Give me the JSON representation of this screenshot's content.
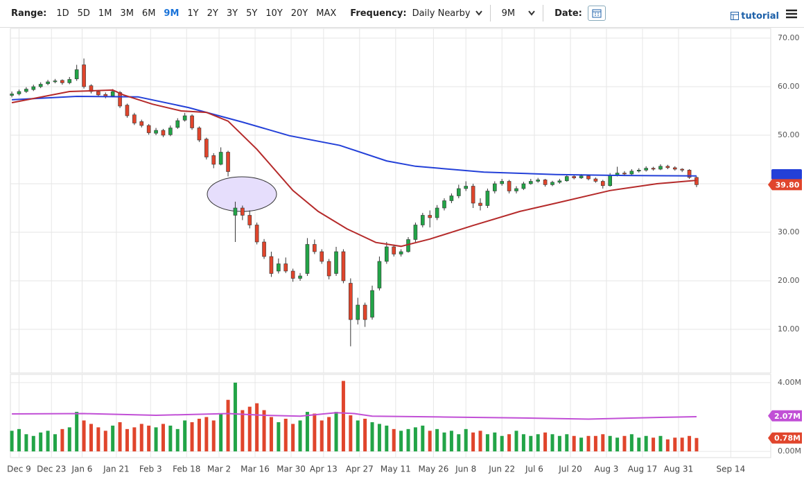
{
  "toolbar": {
    "range_label": "Range:",
    "ranges": [
      "1D",
      "5D",
      "1M",
      "3M",
      "6M",
      "9M",
      "1Y",
      "2Y",
      "3Y",
      "5Y",
      "10Y",
      "20Y",
      "MAX"
    ],
    "frequency_label": "Frequency:",
    "frequency": "Daily Nearby",
    "period": "9M",
    "date_label": "Date:",
    "tutorial": "tutorial"
  },
  "chart_data": {
    "type": "candlestick",
    "x": [
      0,
      2,
      4,
      6,
      8,
      10,
      12,
      14,
      16,
      18,
      20,
      22,
      24,
      26,
      28,
      30,
      32,
      34,
      36,
      38,
      40,
      42,
      44,
      46,
      48,
      50,
      52,
      54,
      56,
      58,
      60,
      62,
      64,
      66,
      68,
      70,
      72,
      74,
      76,
      78,
      80,
      82,
      84,
      86,
      88,
      90,
      92,
      94,
      96,
      98,
      100,
      102,
      104,
      106,
      108,
      110,
      112,
      114,
      116,
      118,
      120,
      122,
      124,
      126,
      128,
      130,
      132,
      134,
      136,
      138,
      140,
      142,
      144,
      146,
      148,
      150,
      152,
      154,
      156,
      158,
      160,
      162,
      164,
      166,
      168,
      170,
      172,
      174,
      176,
      178,
      180,
      182,
      184,
      186,
      188,
      190
    ],
    "ohlc": [
      [
        58.2,
        59,
        57.8,
        58.5
      ],
      [
        58.5,
        59.4,
        58.2,
        59
      ],
      [
        59,
        59.9,
        58.7,
        59.5
      ],
      [
        59.4,
        60.4,
        59.1,
        60
      ],
      [
        60,
        60.9,
        59.7,
        60.5
      ],
      [
        60.6,
        61.4,
        60.3,
        61
      ],
      [
        61,
        61.6,
        60.7,
        61.2
      ],
      [
        61.3,
        61.5,
        60.4,
        60.8
      ],
      [
        60.8,
        62,
        60.5,
        61.5
      ],
      [
        61.6,
        64.5,
        61.2,
        63.5
      ],
      [
        64.5,
        65.8,
        59.6,
        60
      ],
      [
        60.2,
        60.5,
        58.6,
        59
      ],
      [
        59,
        59.3,
        57.9,
        58.3
      ],
      [
        58.4,
        58.8,
        57.6,
        58
      ],
      [
        58.1,
        59.5,
        57.8,
        59
      ],
      [
        58.8,
        59.1,
        55.6,
        56
      ],
      [
        56.2,
        56.5,
        53.6,
        54
      ],
      [
        54.2,
        54.6,
        52.1,
        52.5
      ],
      [
        52.8,
        53.2,
        51.6,
        52
      ],
      [
        52,
        52.3,
        50.1,
        50.5
      ],
      [
        50.4,
        51.5,
        50,
        51
      ],
      [
        51,
        51.3,
        49.6,
        50
      ],
      [
        50.1,
        52,
        49.8,
        51.5
      ],
      [
        51.6,
        53.5,
        51.3,
        53
      ],
      [
        53.1,
        54.6,
        52.8,
        54
      ],
      [
        54,
        54.3,
        51.1,
        51.5
      ],
      [
        51.5,
        51.8,
        48.6,
        49
      ],
      [
        49.2,
        49.5,
        45,
        45.5
      ],
      [
        45.8,
        46.3,
        43.2,
        44
      ],
      [
        44,
        47.5,
        43.8,
        46.5
      ],
      [
        46.5,
        46.8,
        41.5,
        42.5
      ],
      [
        33.5,
        36.3,
        28,
        35
      ],
      [
        35,
        35.5,
        32.5,
        33.5
      ],
      [
        33.5,
        34.5,
        30.8,
        31.5
      ],
      [
        31.5,
        32,
        27.5,
        28
      ],
      [
        28,
        28.6,
        24.5,
        25
      ],
      [
        25,
        26,
        20.8,
        21.5
      ],
      [
        22,
        24.6,
        21.5,
        23.5
      ],
      [
        23.5,
        24.8,
        21.6,
        22
      ],
      [
        22,
        22.5,
        19.8,
        20.5
      ],
      [
        20.5,
        21.6,
        20,
        21
      ],
      [
        21.5,
        28.8,
        21,
        27.5
      ],
      [
        27.5,
        28.5,
        25.5,
        26
      ],
      [
        26,
        26.5,
        23.5,
        24
      ],
      [
        24,
        24.5,
        20.3,
        21
      ],
      [
        21.5,
        27,
        21,
        26
      ],
      [
        26,
        26.5,
        19.5,
        20
      ],
      [
        19.5,
        20.5,
        6.5,
        12
      ],
      [
        12,
        16.5,
        11,
        15
      ],
      [
        15,
        15.5,
        10.5,
        12
      ],
      [
        12.5,
        19,
        12,
        18
      ],
      [
        18.5,
        25,
        18,
        24
      ],
      [
        24,
        28,
        23.5,
        27
      ],
      [
        27,
        27.5,
        25,
        25.5
      ],
      [
        25.5,
        26.5,
        25,
        26
      ],
      [
        26,
        29,
        25.8,
        28.5
      ],
      [
        28.5,
        32,
        28,
        31.5
      ],
      [
        31.5,
        34,
        31,
        33.5
      ],
      [
        33.5,
        34.5,
        31,
        33
      ],
      [
        33,
        35.6,
        32.5,
        35
      ],
      [
        35,
        37,
        34.5,
        36.5
      ],
      [
        36.5,
        38,
        36,
        37.5
      ],
      [
        37.5,
        39.8,
        37,
        39
      ],
      [
        39,
        40.5,
        38.5,
        39.5
      ],
      [
        39.5,
        40,
        35,
        36
      ],
      [
        36,
        37,
        34.5,
        35.5
      ],
      [
        35.5,
        39,
        35,
        38.5
      ],
      [
        38.5,
        40.5,
        38,
        40
      ],
      [
        40,
        41,
        39.6,
        40.5
      ],
      [
        40.5,
        40.8,
        38,
        38.5
      ],
      [
        38.5,
        39.5,
        38,
        39
      ],
      [
        39,
        40.4,
        38.7,
        40
      ],
      [
        40,
        41,
        39.8,
        40.5
      ],
      [
        40.5,
        41.2,
        40.2,
        40.8
      ],
      [
        40.8,
        41,
        39.4,
        39.8
      ],
      [
        39.8,
        40.6,
        39.5,
        40.3
      ],
      [
        40.3,
        41,
        40,
        40.6
      ],
      [
        40.6,
        42,
        40.4,
        41.5
      ],
      [
        41.5,
        41.8,
        40.9,
        41.2
      ],
      [
        41.2,
        42,
        41,
        41.6
      ],
      [
        41.6,
        41.9,
        40.7,
        41
      ],
      [
        41,
        41.3,
        40.2,
        40.5
      ],
      [
        40.5,
        40.8,
        39,
        39.6
      ],
      [
        39.6,
        42.2,
        39.4,
        41.8
      ],
      [
        41.8,
        43.5,
        41.5,
        42.2
      ],
      [
        42.2,
        42.6,
        41.7,
        42
      ],
      [
        42,
        43,
        41.8,
        42.6
      ],
      [
        42.6,
        43.2,
        42.3,
        42.8
      ],
      [
        42.8,
        43.6,
        42.5,
        43.2
      ],
      [
        43.2,
        43.5,
        42.7,
        43
      ],
      [
        43,
        44,
        42.8,
        43.6
      ],
      [
        43.6,
        43.9,
        43,
        43.3
      ],
      [
        43.3,
        43.6,
        42.7,
        43
      ],
      [
        43,
        43.2,
        42.4,
        42.8
      ],
      [
        42.8,
        43,
        41,
        41.3
      ],
      [
        41.3,
        41.5,
        39.3,
        39.8
      ]
    ],
    "up_color": "#22a447",
    "down_color": "#e0452c",
    "xlim": [
      -0.4,
      210.2
    ],
    "xticks": [
      {
        "value": 2,
        "label": "Dec 9"
      },
      {
        "value": 11,
        "label": "Dec 23"
      },
      {
        "value": 19.5,
        "label": "Jan 6"
      },
      {
        "value": 29,
        "label": "Jan 21"
      },
      {
        "value": 38.5,
        "label": "Feb 3"
      },
      {
        "value": 48.5,
        "label": "Feb 18"
      },
      {
        "value": 57.5,
        "label": "Mar 2"
      },
      {
        "value": 67.5,
        "label": "Mar 16"
      },
      {
        "value": 77.5,
        "label": "Mar 30"
      },
      {
        "value": 86.5,
        "label": "Apr 13"
      },
      {
        "value": 96.5,
        "label": "Apr 27"
      },
      {
        "value": 106.5,
        "label": "May 11"
      },
      {
        "value": 117,
        "label": "May 26"
      },
      {
        "value": 126,
        "label": "Jun 8"
      },
      {
        "value": 136,
        "label": "Jun 22"
      },
      {
        "value": 145,
        "label": "Jul 6"
      },
      {
        "value": 155,
        "label": "Jul 20"
      },
      {
        "value": 165,
        "label": "Aug 3"
      },
      {
        "value": 175,
        "label": "Aug 17"
      },
      {
        "value": 185,
        "label": "Aug 31"
      },
      {
        "value": 199.5,
        "label": "Sep 14"
      }
    ],
    "ylim": [
      1,
      72
    ],
    "yticks": [
      {
        "value": 10,
        "label": "10.00"
      },
      {
        "value": 20,
        "label": "20.00"
      },
      {
        "value": 30,
        "label": "30.00"
      },
      {
        "value": 40,
        "label": "40.00"
      },
      {
        "value": 50,
        "label": "50.00"
      },
      {
        "value": 60,
        "label": "60.00"
      },
      {
        "value": 70,
        "label": "70.00"
      }
    ],
    "grid": true,
    "overlays": [
      {
        "color": "#2340d8",
        "x": [
          0,
          18,
          35,
          49,
          64,
          77,
          91,
          104,
          112,
          131,
          151,
          170,
          190
        ],
        "values": [
          57.3,
          58,
          57.9,
          55.7,
          52.7,
          49.9,
          47.9,
          44.7,
          43.6,
          42.4,
          41.9,
          41.7,
          41.6
        ]
      },
      {
        "color": "#b52a2a",
        "x": [
          0,
          16,
          28,
          31,
          39,
          47,
          54,
          60,
          68,
          78,
          85,
          93,
          101,
          108,
          116,
          128,
          141,
          151,
          166,
          179,
          190
        ],
        "values": [
          56.7,
          59,
          59.3,
          58.3,
          56.4,
          55,
          54.7,
          52.9,
          47.1,
          38.6,
          34.3,
          30.7,
          27.9,
          27.1,
          28.6,
          31.4,
          34.3,
          36,
          38.6,
          40,
          40.7
        ]
      }
    ],
    "last_price": {
      "value": 39.8,
      "label": "39.80",
      "color": "#e0452c"
    },
    "volume": {
      "values": [
        1.2,
        1.3,
        1.0,
        0.9,
        1.1,
        1.2,
        1.0,
        1.3,
        1.4,
        2.3,
        1.8,
        1.6,
        1.4,
        1.2,
        1.5,
        1.7,
        1.3,
        1.4,
        1.6,
        1.5,
        1.4,
        1.6,
        1.5,
        1.3,
        1.8,
        1.7,
        1.9,
        2.0,
        1.8,
        2.2,
        3.0,
        4.0,
        2.4,
        2.6,
        2.8,
        2.4,
        2.0,
        1.7,
        1.9,
        1.6,
        1.8,
        2.3,
        2.2,
        1.8,
        2.0,
        2.3,
        4.1,
        2.1,
        1.8,
        1.9,
        1.7,
        1.6,
        1.5,
        1.3,
        1.2,
        1.3,
        1.4,
        1.5,
        1.2,
        1.3,
        1.1,
        1.2,
        1.0,
        1.3,
        1.1,
        1.2,
        1.0,
        1.1,
        0.9,
        1.0,
        1.2,
        1.0,
        0.9,
        1.0,
        1.1,
        1.0,
        0.9,
        1.0,
        0.9,
        0.8,
        0.9,
        0.9,
        1.0,
        0.9,
        0.8,
        0.9,
        1.0,
        0.8,
        0.9,
        0.8,
        0.9,
        0.7,
        0.8,
        0.8,
        0.9,
        0.78
      ],
      "ylim": [
        -0.36,
        4.48
      ],
      "yticks": [
        {
          "value": 4,
          "label": "4.00M"
        },
        {
          "value": 0,
          "label": "0.00M"
        }
      ],
      "ma": {
        "color": "#c14fd6",
        "x": [
          0,
          20,
          40,
          60,
          70,
          80,
          90,
          95,
          100,
          120,
          140,
          160,
          180,
          190
        ],
        "values": [
          2.18,
          2.2,
          2.1,
          2.2,
          2.1,
          2.05,
          2.25,
          2.2,
          2.05,
          2.0,
          1.95,
          1.88,
          1.98,
          2.02
        ]
      },
      "badges": [
        {
          "value": 2.07,
          "label": "2.07M",
          "color": "#c14fd6"
        },
        {
          "value": 0.78,
          "label": "0.78M",
          "color": "#e0452c"
        }
      ]
    }
  }
}
